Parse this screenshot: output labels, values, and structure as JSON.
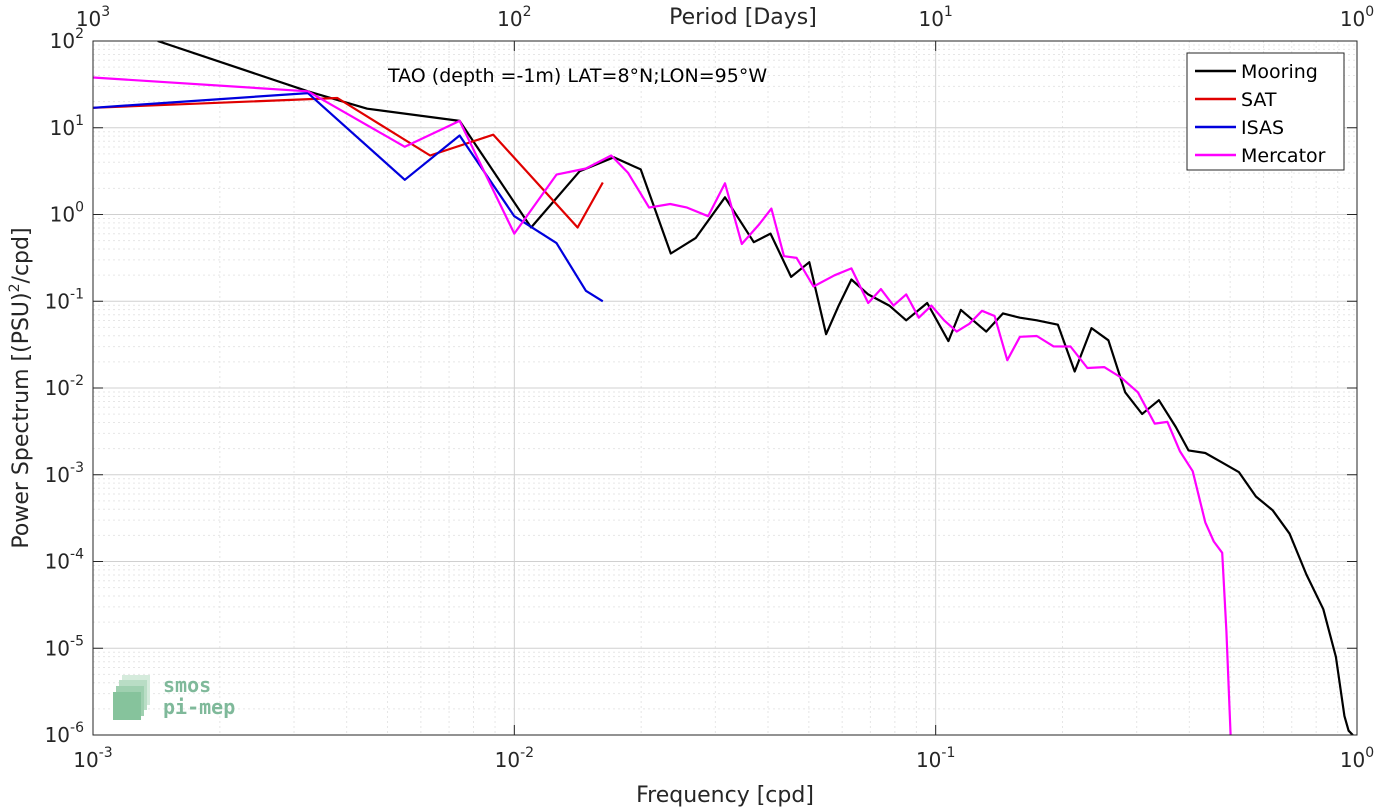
{
  "chart_data": {
    "type": "line",
    "annotation": "TAO (depth =-1m) LAT=8°N;LON=95°W",
    "xlabel": "Frequency [cpd]",
    "ylabel_pre": "Power Spectrum [(PSU)",
    "ylabel_sup": "2",
    "ylabel_post": "/cpd]",
    "top_xlabel": "Period [Days]",
    "x_scale": "log",
    "y_scale": "log",
    "xlim": [
      0.001,
      1
    ],
    "ylim": [
      1e-06,
      100
    ],
    "grid": true,
    "legend_position": "top-right",
    "x_ticks": [
      {
        "value": 0.001,
        "base": "10",
        "exp": "-3"
      },
      {
        "value": 0.01,
        "base": "10",
        "exp": "-2"
      },
      {
        "value": 0.1,
        "base": "10",
        "exp": "-1"
      },
      {
        "value": 1,
        "base": "10",
        "exp": "0"
      }
    ],
    "y_ticks": [
      {
        "value": 100,
        "base": "10",
        "exp": "2"
      },
      {
        "value": 10,
        "base": "10",
        "exp": "1"
      },
      {
        "value": 1,
        "base": "10",
        "exp": "0"
      },
      {
        "value": 0.1,
        "base": "10",
        "exp": "-1"
      },
      {
        "value": 0.01,
        "base": "10",
        "exp": "-2"
      },
      {
        "value": 0.001,
        "base": "10",
        "exp": "-3"
      },
      {
        "value": 0.0001,
        "base": "10",
        "exp": "-4"
      },
      {
        "value": 1e-05,
        "base": "10",
        "exp": "-5"
      },
      {
        "value": 1e-06,
        "base": "10",
        "exp": "-6"
      }
    ],
    "top_ticks": [
      {
        "value": 0.001,
        "base": "10",
        "exp": "3"
      },
      {
        "value": 0.01,
        "base": "10",
        "exp": "2"
      },
      {
        "value": 0.1,
        "base": "10",
        "exp": "1"
      },
      {
        "value": 1,
        "base": "10",
        "exp": "0"
      }
    ],
    "series": [
      {
        "name": "Mooring",
        "color": "#000000",
        "x": [
          0.001424,
          0.003236,
          0.004475,
          0.007413,
          0.01096,
          0.01429,
          0.01722,
          0.01995,
          0.02352,
          0.02696,
          0.03162,
          0.03702,
          0.04055,
          0.04539,
          0.05012,
          0.05495,
          0.05888,
          0.0631,
          0.06918,
          0.07762,
          0.08511,
          0.0955,
          0.1072,
          0.1148,
          0.1318,
          0.1445,
          0.1585,
          0.1738,
          0.195,
          0.2138,
          0.2344,
          0.257,
          0.2818,
          0.309,
          0.3388,
          0.3715,
          0.3981,
          0.4365,
          0.4786,
          0.5248,
          0.5754,
          0.631,
          0.6918,
          0.7586,
          0.8318,
          0.8913,
          0.9333,
          0.955,
          0.9772
        ],
        "y": [
          100,
          26.3,
          16.6,
          12.0,
          0.708,
          3.16,
          4.57,
          3.31,
          0.355,
          0.537,
          1.58,
          0.479,
          0.603,
          0.191,
          0.282,
          0.0417,
          0.0891,
          0.178,
          0.12,
          0.0891,
          0.0603,
          0.0955,
          0.0347,
          0.0794,
          0.0447,
          0.0724,
          0.0646,
          0.0603,
          0.0537,
          0.0155,
          0.049,
          0.0355,
          0.00891,
          0.00501,
          0.00724,
          0.00355,
          0.00191,
          0.00178,
          0.00138,
          0.00107,
          0.000562,
          0.000389,
          0.000209,
          7.08e-05,
          2.82e-05,
          7.94e-06,
          1.66e-06,
          1.12e-06,
          1e-06
        ]
      },
      {
        "name": "SAT",
        "color": "#e00000",
        "x": [
          0.001,
          0.003802,
          0.00631,
          0.008913,
          0.01413,
          0.01622
        ],
        "y": [
          17.0,
          22.0,
          4.79,
          8.32,
          0.708,
          2.34
        ]
      },
      {
        "name": "ISAS",
        "color": "#0000dd",
        "x": [
          0.001,
          0.003236,
          0.005495,
          0.007413,
          0.01,
          0.01259,
          0.01479,
          0.01622
        ],
        "y": [
          17.0,
          25.1,
          2.51,
          8.13,
          0.955,
          0.468,
          0.132,
          0.1
        ]
      },
      {
        "name": "Mercator",
        "color": "#ff00ff",
        "x": [
          0.001,
          0.003236,
          0.005495,
          0.007413,
          0.01,
          0.01259,
          0.01479,
          0.01698,
          0.01862,
          0.02089,
          0.02344,
          0.0257,
          0.02884,
          0.03162,
          0.03467,
          0.03802,
          0.04074,
          0.04365,
          0.04677,
          0.05128,
          0.05754,
          0.0631,
          0.06918,
          0.07413,
          0.07943,
          0.08511,
          0.0912,
          0.09772,
          0.1047,
          0.1122,
          0.1202,
          0.1288,
          0.138,
          0.1479,
          0.1585,
          0.1738,
          0.1905,
          0.2089,
          0.2291,
          0.2512,
          0.2754,
          0.302,
          0.3311,
          0.3548,
          0.3802,
          0.4074,
          0.4365,
          0.4571,
          0.4786,
          0.4898,
          0.5012
        ],
        "y": [
          38.0,
          26.3,
          6.03,
          12.0,
          0.603,
          2.88,
          3.39,
          4.79,
          3.02,
          1.2,
          1.32,
          1.2,
          0.955,
          2.29,
          0.457,
          0.759,
          1.17,
          0.331,
          0.316,
          0.148,
          0.199,
          0.239,
          0.0955,
          0.138,
          0.0891,
          0.12,
          0.0646,
          0.0891,
          0.0603,
          0.0447,
          0.055,
          0.0776,
          0.0676,
          0.0209,
          0.0389,
          0.0398,
          0.0302,
          0.0301,
          0.017,
          0.0174,
          0.0132,
          0.00891,
          0.00389,
          0.00407,
          0.00186,
          0.0011,
          0.000282,
          0.00017,
          0.000126,
          1.58e-05,
          1e-06
        ]
      }
    ]
  },
  "logo": {
    "line1": "smos",
    "line2": "pi-mep"
  }
}
